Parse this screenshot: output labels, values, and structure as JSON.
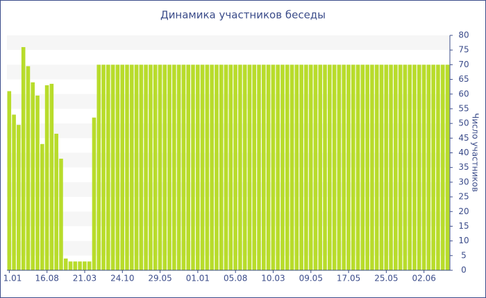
{
  "chart_data": {
    "type": "bar",
    "title": "Динамика участников беседы",
    "y_label": "Число участников",
    "categories": [
      "1.01",
      null,
      null,
      null,
      null,
      null,
      null,
      null,
      "16.08",
      null,
      null,
      null,
      null,
      null,
      null,
      null,
      "21.03",
      null,
      null,
      null,
      null,
      null,
      null,
      null,
      "24.10",
      null,
      null,
      null,
      null,
      null,
      null,
      null,
      "29.05",
      null,
      null,
      null,
      null,
      null,
      null,
      null,
      "01.01",
      null,
      null,
      null,
      null,
      null,
      null,
      null,
      "05.08",
      null,
      null,
      null,
      null,
      null,
      null,
      null,
      "10.03",
      null,
      null,
      null,
      null,
      null,
      null,
      null,
      "09.05",
      null,
      null,
      null,
      null,
      null,
      null,
      null,
      "17.05",
      null,
      null,
      null,
      null,
      null,
      null,
      null,
      "25.05",
      null,
      null,
      null,
      null,
      null,
      null,
      null,
      "02.06",
      null,
      null,
      null,
      null,
      null
    ],
    "values": [
      61,
      53,
      49.5,
      76,
      69.5,
      64,
      59.5,
      43,
      63,
      63.5,
      46.5,
      38,
      4,
      3,
      3,
      3,
      3,
      3,
      52,
      70,
      70,
      70,
      70,
      70,
      70,
      70,
      70,
      70,
      70,
      70,
      70,
      70,
      70,
      70,
      70,
      70,
      70,
      70,
      70,
      70,
      70,
      70,
      70,
      70,
      70,
      70,
      70,
      70,
      70,
      70,
      70,
      70,
      70,
      70,
      70,
      70,
      70,
      70,
      70,
      70,
      70,
      70,
      70,
      70,
      70,
      70,
      70,
      70,
      70,
      70,
      70,
      70,
      70,
      70,
      70,
      70,
      70,
      70,
      70,
      70,
      70,
      70,
      70,
      70,
      70,
      70,
      70,
      70,
      70,
      70,
      70,
      70,
      70,
      70
    ],
    "color": "#b8dc2b",
    "ylim": [
      0,
      80
    ],
    "yticks": [
      0,
      5,
      10,
      15,
      20,
      25,
      30,
      35,
      40,
      45,
      50,
      55,
      60,
      65,
      70,
      75,
      80
    ],
    "grid": true
  }
}
